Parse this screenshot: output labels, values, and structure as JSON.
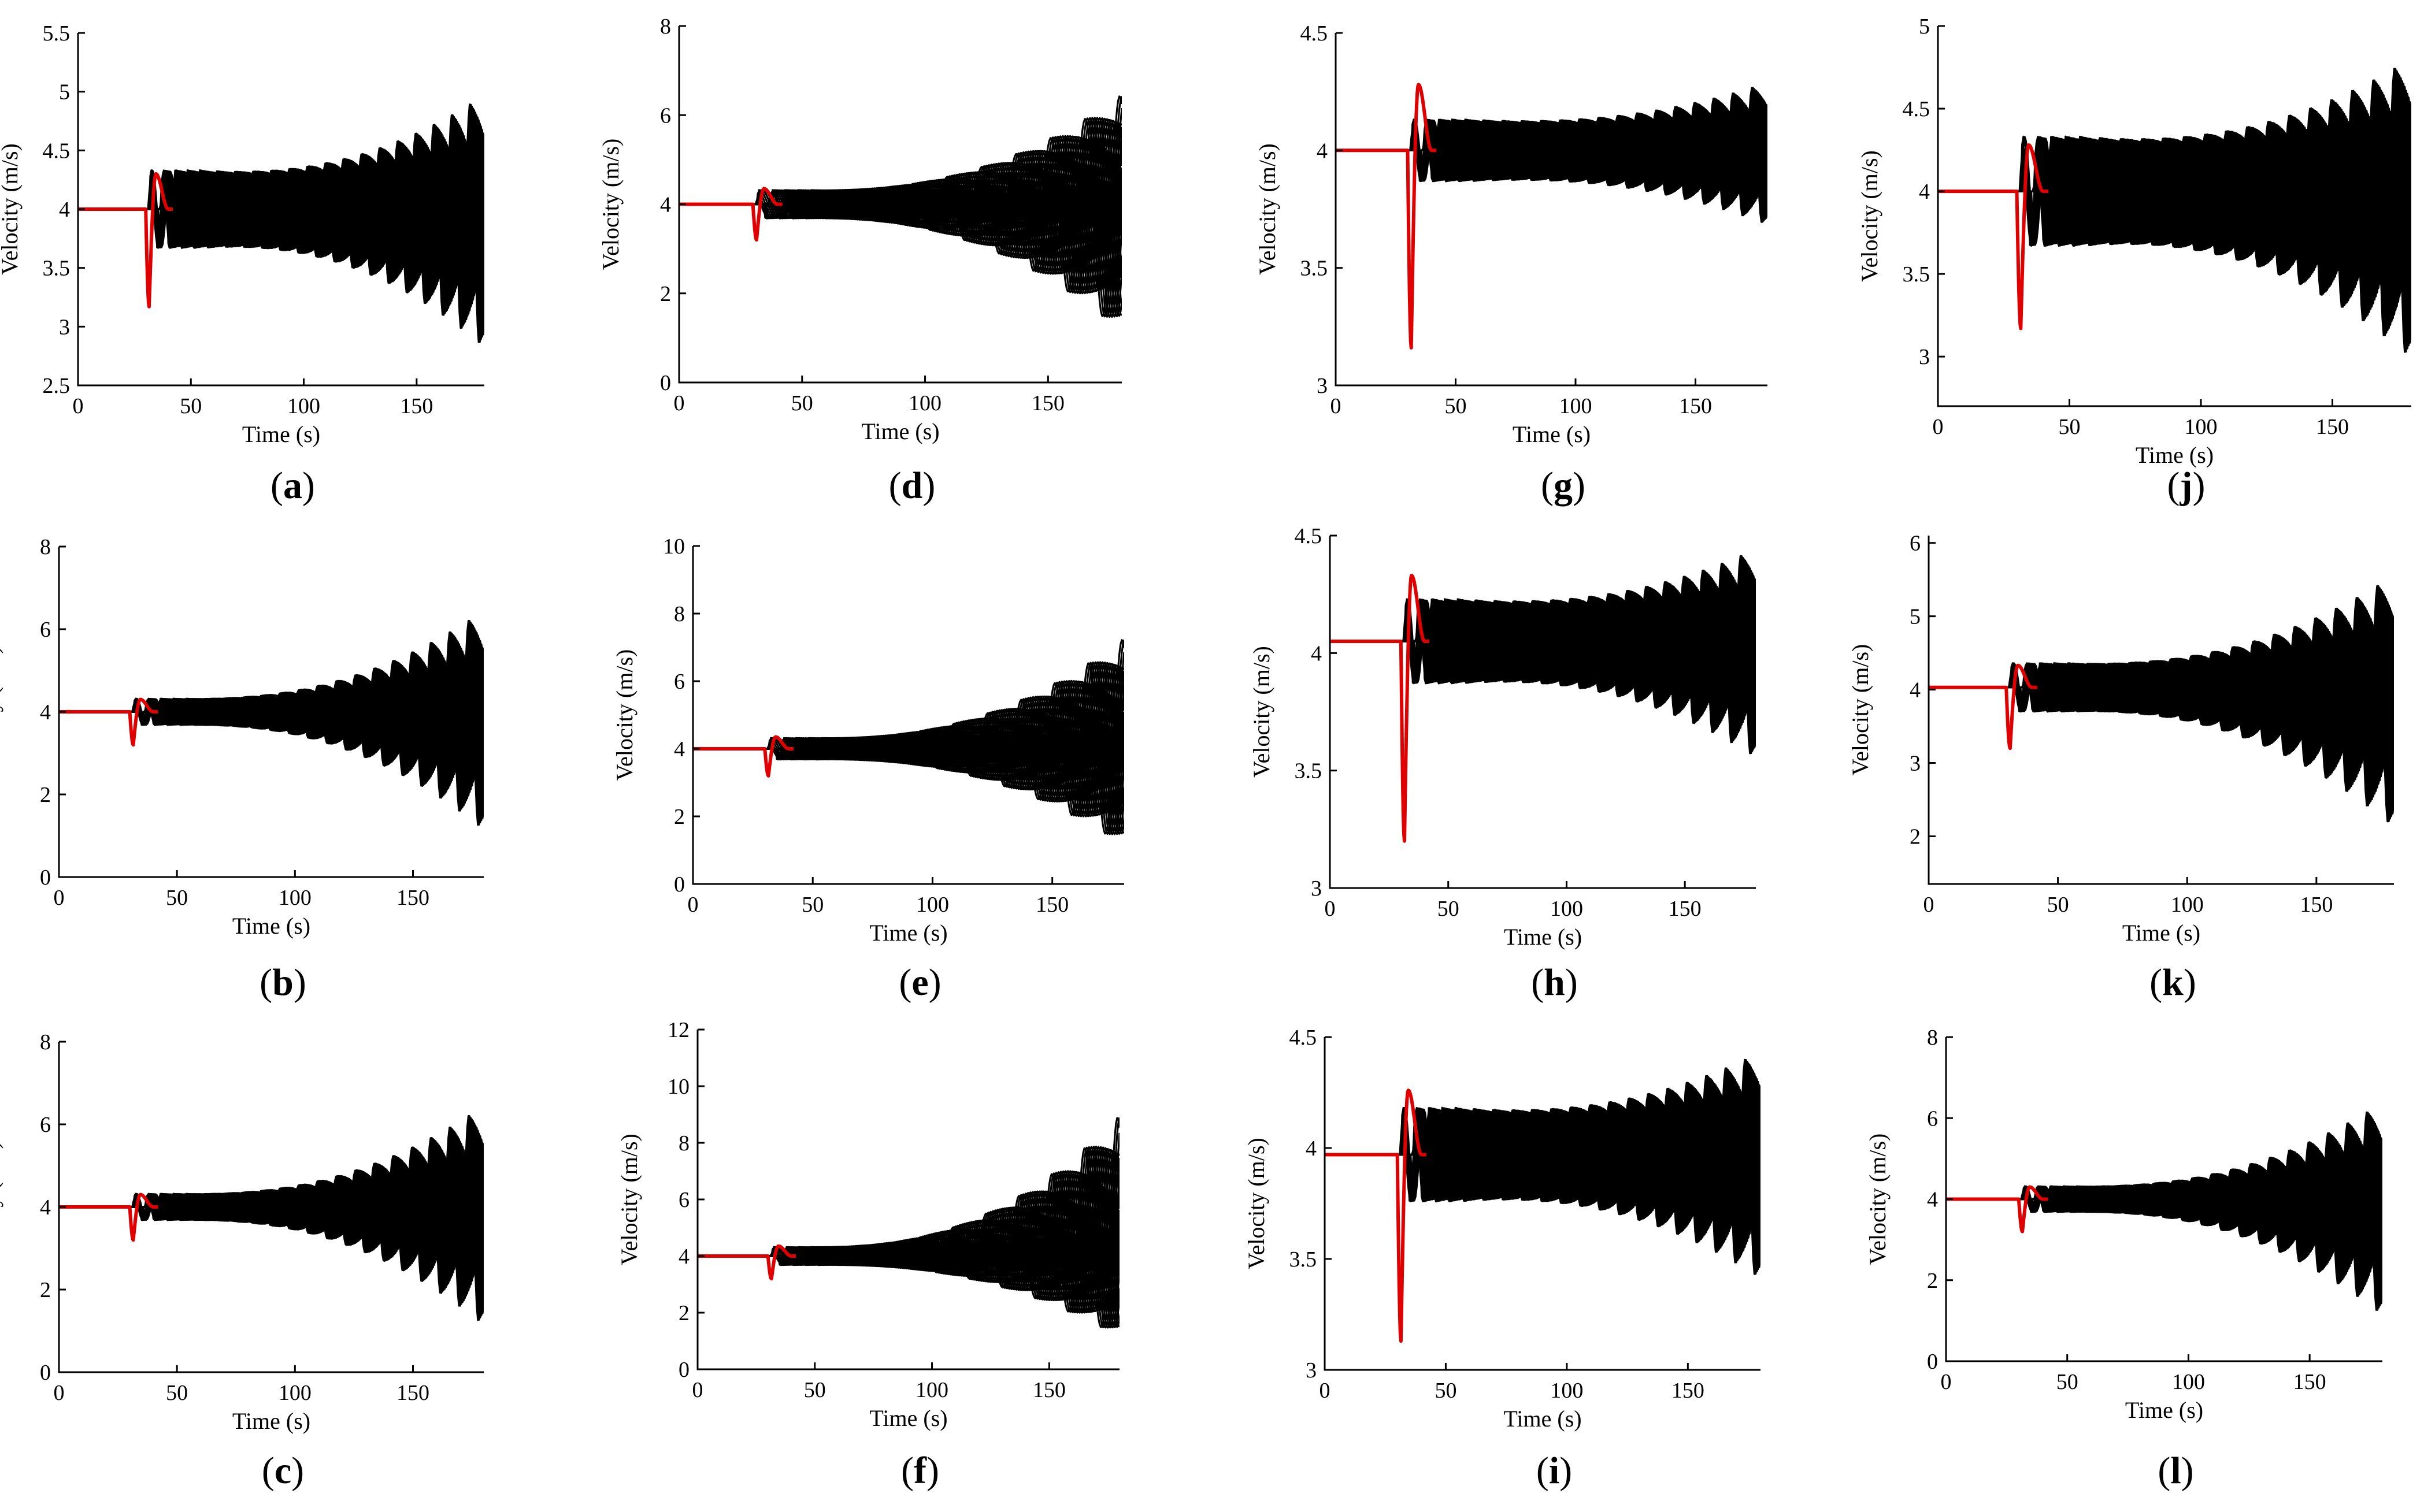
{
  "figure": {
    "series_colors": {
      "followers": "#000000",
      "leader": "#e00000"
    }
  },
  "chart_data": [
    {
      "id": "a",
      "type": "line",
      "panel_label": "a",
      "xlabel": "Time (s)",
      "ylabel": "Velocity (m/s)",
      "xlim": [
        0,
        180
      ],
      "ylim": [
        2.5,
        5.5
      ],
      "xticks": [
        0,
        50,
        100,
        150
      ],
      "yticks": [
        2.5,
        3,
        3.5,
        4,
        4.5,
        5,
        5.5
      ],
      "base_velocity": 4.0,
      "perturbation_time": 30,
      "leader_dip": 3.17,
      "leader_peak": 4.3,
      "envelope_upper_end": 5.2,
      "envelope_lower_end": 2.5,
      "vehicles": 40,
      "oscillation_period_s": 8,
      "series": [
        {
          "name": "leader",
          "color": "#e00000"
        },
        {
          "name": "followers",
          "color": "#000000"
        }
      ]
    },
    {
      "id": "b",
      "type": "line",
      "panel_label": "b",
      "xlabel": "Time (s)",
      "ylabel": "Velocity (m/s)",
      "xlim": [
        0,
        180
      ],
      "ylim": [
        0,
        8
      ],
      "xticks": [
        0,
        50,
        100,
        150
      ],
      "yticks": [
        0,
        2,
        4,
        6,
        8
      ],
      "base_velocity": 4.0,
      "perturbation_time": 30,
      "leader_dip": 3.2,
      "leader_peak": 4.3,
      "envelope_upper_end": 7.4,
      "envelope_lower_end": 0,
      "vehicles": 40,
      "oscillation_period_s": 8,
      "series": [
        {
          "name": "leader",
          "color": "#e00000"
        },
        {
          "name": "followers",
          "color": "#000000"
        }
      ]
    },
    {
      "id": "c",
      "type": "line",
      "panel_label": "c",
      "xlabel": "Time (s)",
      "ylabel": "Velocity (m/s)",
      "xlim": [
        0,
        180
      ],
      "ylim": [
        0,
        8
      ],
      "xticks": [
        0,
        50,
        100,
        150
      ],
      "yticks": [
        0,
        2,
        4,
        6,
        8
      ],
      "base_velocity": 4.0,
      "perturbation_time": 30,
      "leader_dip": 3.2,
      "leader_peak": 4.3,
      "envelope_upper_end": 7.4,
      "envelope_lower_end": 0,
      "vehicles": 40,
      "oscillation_period_s": 8,
      "series": [
        {
          "name": "leader",
          "color": "#e00000"
        },
        {
          "name": "followers",
          "color": "#000000"
        }
      ]
    },
    {
      "id": "d",
      "type": "line",
      "panel_label": "d",
      "xlabel": "Time (s)",
      "ylabel": "Velocity (m/s)",
      "xlim": [
        0,
        180
      ],
      "ylim": [
        0,
        8
      ],
      "xticks": [
        0,
        50,
        100,
        150
      ],
      "yticks": [
        0,
        2,
        4,
        6,
        8
      ],
      "base_velocity": 4.0,
      "perturbation_time": 30,
      "leader_dip": 3.2,
      "leader_peak": 4.35,
      "envelope_upper_end": 7.4,
      "envelope_lower_end": 0,
      "vehicles": 40,
      "oscillation_period_s": 14,
      "series": [
        {
          "name": "leader",
          "color": "#e00000"
        },
        {
          "name": "followers",
          "color": "#000000"
        }
      ]
    },
    {
      "id": "e",
      "type": "line",
      "panel_label": "e",
      "xlabel": "Time (s)",
      "ylabel": "Velocity (m/s)",
      "xlim": [
        0,
        180
      ],
      "ylim": [
        0,
        10
      ],
      "xticks": [
        0,
        50,
        100,
        150
      ],
      "yticks": [
        0,
        2,
        4,
        6,
        8,
        10
      ],
      "base_velocity": 4.0,
      "perturbation_time": 30,
      "leader_dip": 3.2,
      "leader_peak": 4.35,
      "envelope_upper_end": 8.6,
      "envelope_lower_end": 0,
      "vehicles": 40,
      "oscillation_period_s": 14,
      "series": [
        {
          "name": "leader",
          "color": "#e00000"
        },
        {
          "name": "followers",
          "color": "#000000"
        }
      ]
    },
    {
      "id": "f",
      "type": "line",
      "panel_label": "f",
      "xlabel": "Time (s)",
      "ylabel": "Velocity (m/s)",
      "xlim": [
        0,
        180
      ],
      "ylim": [
        0,
        12
      ],
      "xticks": [
        0,
        50,
        100,
        150
      ],
      "yticks": [
        0,
        2,
        4,
        6,
        8,
        10,
        12
      ],
      "base_velocity": 4.0,
      "perturbation_time": 30,
      "leader_dip": 3.2,
      "leader_peak": 4.35,
      "envelope_upper_end": 11.1,
      "envelope_lower_end": 0,
      "vehicles": 40,
      "oscillation_period_s": 14,
      "series": [
        {
          "name": "leader",
          "color": "#e00000"
        },
        {
          "name": "followers",
          "color": "#000000"
        }
      ]
    },
    {
      "id": "g",
      "type": "line",
      "panel_label": "g",
      "xlabel": "Time (s)",
      "ylabel": "Velocity (m/s)",
      "xlim": [
        0,
        180
      ],
      "ylim": [
        3,
        4.5
      ],
      "xticks": [
        0,
        50,
        100,
        150
      ],
      "yticks": [
        3,
        3.5,
        4,
        4.5
      ],
      "base_velocity": 4.0,
      "perturbation_time": 30,
      "leader_dip": 3.16,
      "leader_peak": 4.28,
      "envelope_upper_end": 4.33,
      "envelope_lower_end": 3.63,
      "vehicles": 40,
      "oscillation_period_s": 8,
      "series": [
        {
          "name": "leader",
          "color": "#e00000"
        },
        {
          "name": "followers",
          "color": "#000000"
        }
      ]
    },
    {
      "id": "h",
      "type": "line",
      "panel_label": "h",
      "xlabel": "Time (s)",
      "ylabel": "Velocity (m/s)",
      "xlim": [
        0,
        180
      ],
      "ylim": [
        3,
        4.5
      ],
      "xticks": [
        0,
        50,
        100,
        150
      ],
      "yticks": [
        3,
        3.5,
        4,
        4.5
      ],
      "base_velocity": 4.05,
      "perturbation_time": 30,
      "leader_dip": 3.2,
      "leader_peak": 4.33,
      "envelope_upper_end": 4.5,
      "envelope_lower_end": 3.45,
      "vehicles": 40,
      "oscillation_period_s": 8,
      "series": [
        {
          "name": "leader",
          "color": "#e00000"
        },
        {
          "name": "followers",
          "color": "#000000"
        }
      ]
    },
    {
      "id": "i",
      "type": "line",
      "panel_label": "i",
      "xlabel": "Time (s)",
      "ylabel": "Velocity (m/s)",
      "xlim": [
        0,
        180
      ],
      "ylim": [
        3,
        4.5
      ],
      "xticks": [
        0,
        50,
        100,
        150
      ],
      "yticks": [
        3,
        3.5,
        4,
        4.5
      ],
      "base_velocity": 3.97,
      "perturbation_time": 30,
      "leader_dip": 3.13,
      "leader_peak": 4.26,
      "envelope_upper_end": 4.5,
      "envelope_lower_end": 3.3,
      "vehicles": 40,
      "oscillation_period_s": 8,
      "series": [
        {
          "name": "leader",
          "color": "#e00000"
        },
        {
          "name": "followers",
          "color": "#000000"
        }
      ]
    },
    {
      "id": "j",
      "type": "line",
      "panel_label": "j",
      "xlabel": "Time (s)",
      "ylabel": "Velocity (m/s)",
      "xlim": [
        0,
        180
      ],
      "ylim": [
        2.7,
        5
      ],
      "xticks": [
        0,
        50,
        100,
        150
      ],
      "yticks": [
        3,
        3.5,
        4,
        4.5,
        5
      ],
      "base_velocity": 4.0,
      "perturbation_time": 30,
      "leader_dip": 3.17,
      "leader_peak": 4.28,
      "envelope_upper_end": 4.95,
      "envelope_lower_end": 2.75,
      "vehicles": 40,
      "oscillation_period_s": 8,
      "series": [
        {
          "name": "leader",
          "color": "#e00000"
        },
        {
          "name": "followers",
          "color": "#000000"
        }
      ]
    },
    {
      "id": "k",
      "type": "line",
      "panel_label": "k",
      "xlabel": "Time (s)",
      "ylabel": "Velocity (m/s)",
      "xlim": [
        0,
        180
      ],
      "ylim": [
        1.35,
        6.1
      ],
      "xticks": [
        0,
        50,
        100,
        150
      ],
      "yticks": [
        2,
        3,
        4,
        5,
        6
      ],
      "base_velocity": 4.03,
      "perturbation_time": 30,
      "leader_dip": 3.2,
      "leader_peak": 4.33,
      "envelope_upper_end": 6.05,
      "envelope_lower_end": 1.45,
      "vehicles": 40,
      "oscillation_period_s": 8,
      "series": [
        {
          "name": "leader",
          "color": "#e00000"
        },
        {
          "name": "followers",
          "color": "#000000"
        }
      ]
    },
    {
      "id": "l",
      "type": "line",
      "panel_label": "l",
      "xlabel": "Time (s)",
      "ylabel": "Velocity (m/s)",
      "xlim": [
        0,
        180
      ],
      "ylim": [
        0,
        8
      ],
      "xticks": [
        0,
        50,
        100,
        150
      ],
      "yticks": [
        0,
        2,
        4,
        6,
        8
      ],
      "base_velocity": 4.0,
      "perturbation_time": 30,
      "leader_dip": 3.2,
      "leader_peak": 4.3,
      "envelope_upper_end": 7.3,
      "envelope_lower_end": 0,
      "vehicles": 40,
      "oscillation_period_s": 8,
      "series": [
        {
          "name": "leader",
          "color": "#e00000"
        },
        {
          "name": "followers",
          "color": "#000000"
        }
      ]
    }
  ]
}
